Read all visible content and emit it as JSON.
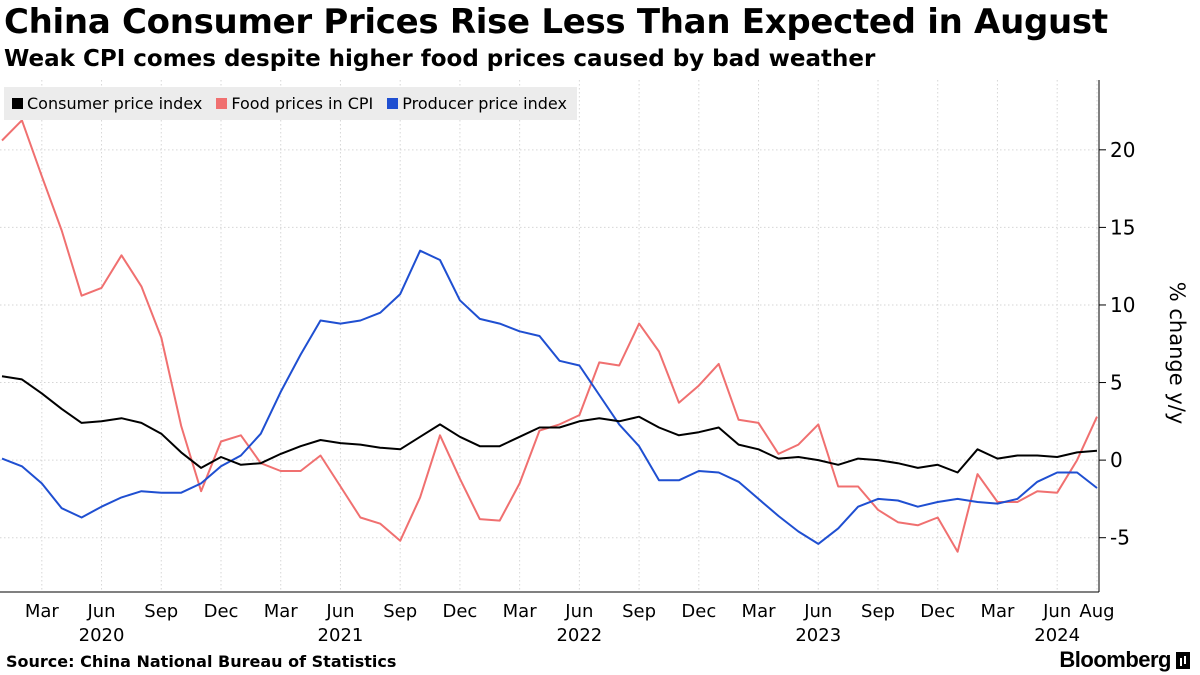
{
  "header": {
    "title": "China Consumer Prices Rise Less Than Expected in August",
    "subtitle": "Weak CPI comes despite higher food prices caused by bad weather"
  },
  "legend": [
    {
      "label": "Consumer price index",
      "color": "#000000"
    },
    {
      "label": "Food prices in CPI",
      "color": "#f07070"
    },
    {
      "label": "Producer price index",
      "color": "#1f4fd1"
    }
  ],
  "footer": {
    "source": "Source: China National Bureau of Statistics",
    "brand": "Bloomberg"
  },
  "chart_data": {
    "type": "line",
    "ylabel": "% change y/y",
    "ylim": [
      -8.5,
      24.5
    ],
    "yticks": [
      -5,
      0,
      5,
      10,
      15,
      20
    ],
    "ytick_labels": [
      "-5",
      "0",
      "5",
      "10",
      "15",
      "20"
    ],
    "y_axis_side": "right",
    "grid": true,
    "legend_position": "top-left",
    "x": [
      "2020-01",
      "2020-02",
      "2020-03",
      "2020-04",
      "2020-05",
      "2020-06",
      "2020-07",
      "2020-08",
      "2020-09",
      "2020-10",
      "2020-11",
      "2020-12",
      "2021-01",
      "2021-02",
      "2021-03",
      "2021-04",
      "2021-05",
      "2021-06",
      "2021-07",
      "2021-08",
      "2021-09",
      "2021-10",
      "2021-11",
      "2021-12",
      "2022-01",
      "2022-02",
      "2022-03",
      "2022-04",
      "2022-05",
      "2022-06",
      "2022-07",
      "2022-08",
      "2022-09",
      "2022-10",
      "2022-11",
      "2022-12",
      "2023-01",
      "2023-02",
      "2023-03",
      "2023-04",
      "2023-05",
      "2023-06",
      "2023-07",
      "2023-08",
      "2023-09",
      "2023-10",
      "2023-11",
      "2023-12",
      "2024-01",
      "2024-02",
      "2024-03",
      "2024-04",
      "2024-05",
      "2024-06",
      "2024-07",
      "2024-08"
    ],
    "x_tick_labels": [
      {
        "x": "2020-03",
        "label": "Mar"
      },
      {
        "x": "2020-06",
        "label": "Jun"
      },
      {
        "x": "2020-09",
        "label": "Sep"
      },
      {
        "x": "2020-12",
        "label": "Dec"
      },
      {
        "x": "2021-03",
        "label": "Mar"
      },
      {
        "x": "2021-06",
        "label": "Jun"
      },
      {
        "x": "2021-09",
        "label": "Sep"
      },
      {
        "x": "2021-12",
        "label": "Dec"
      },
      {
        "x": "2022-03",
        "label": "Mar"
      },
      {
        "x": "2022-06",
        "label": "Jun"
      },
      {
        "x": "2022-09",
        "label": "Sep"
      },
      {
        "x": "2022-12",
        "label": "Dec"
      },
      {
        "x": "2023-03",
        "label": "Mar"
      },
      {
        "x": "2023-06",
        "label": "Jun"
      },
      {
        "x": "2023-09",
        "label": "Sep"
      },
      {
        "x": "2023-12",
        "label": "Dec"
      },
      {
        "x": "2024-03",
        "label": "Mar"
      },
      {
        "x": "2024-06",
        "label": "Jun"
      },
      {
        "x": "2024-08",
        "label": "Aug"
      }
    ],
    "year_labels": [
      {
        "x": "2020-06",
        "label": "2020"
      },
      {
        "x": "2021-06",
        "label": "2021"
      },
      {
        "x": "2022-06",
        "label": "2022"
      },
      {
        "x": "2023-06",
        "label": "2023"
      },
      {
        "x": "2024-06",
        "label": "2024"
      }
    ],
    "series": [
      {
        "name": "Consumer price index",
        "color": "#000000",
        "values": [
          5.4,
          5.2,
          4.3,
          3.3,
          2.4,
          2.5,
          2.7,
          2.4,
          1.7,
          0.5,
          -0.5,
          0.2,
          -0.3,
          -0.2,
          0.4,
          0.9,
          1.3,
          1.1,
          1.0,
          0.8,
          0.7,
          1.5,
          2.3,
          1.5,
          0.9,
          0.9,
          1.5,
          2.1,
          2.1,
          2.5,
          2.7,
          2.5,
          2.8,
          2.1,
          1.6,
          1.8,
          2.1,
          1.0,
          0.7,
          0.1,
          0.2,
          0.0,
          -0.3,
          0.1,
          0.0,
          -0.2,
          -0.5,
          -0.3,
          -0.8,
          0.7,
          0.1,
          0.3,
          0.3,
          0.2,
          0.5,
          0.6
        ]
      },
      {
        "name": "Food prices in CPI",
        "color": "#f07070",
        "values": [
          20.6,
          21.9,
          18.3,
          14.8,
          10.6,
          11.1,
          13.2,
          11.2,
          7.9,
          2.2,
          -2.0,
          1.2,
          1.6,
          -0.2,
          -0.7,
          -0.7,
          0.3,
          -1.7,
          -3.7,
          -4.1,
          -5.2,
          -2.4,
          1.6,
          -1.2,
          -3.8,
          -3.9,
          -1.5,
          1.9,
          2.3,
          2.9,
          6.3,
          6.1,
          8.8,
          7.0,
          3.7,
          4.8,
          6.2,
          2.6,
          2.4,
          0.4,
          1.0,
          2.3,
          -1.7,
          -1.7,
          -3.2,
          -4.0,
          -4.2,
          -3.7,
          -5.9,
          -0.9,
          -2.7,
          -2.7,
          -2.0,
          -2.1,
          0.0,
          2.8
        ]
      },
      {
        "name": "Producer price index",
        "color": "#1f4fd1",
        "values": [
          0.1,
          -0.4,
          -1.5,
          -3.1,
          -3.7,
          -3.0,
          -2.4,
          -2.0,
          -2.1,
          -2.1,
          -1.5,
          -0.4,
          0.3,
          1.7,
          4.4,
          6.8,
          9.0,
          8.8,
          9.0,
          9.5,
          10.7,
          13.5,
          12.9,
          10.3,
          9.1,
          8.8,
          8.3,
          8.0,
          6.4,
          6.1,
          4.2,
          2.3,
          0.9,
          -1.3,
          -1.3,
          -0.7,
          -0.8,
          -1.4,
          -2.5,
          -3.6,
          -4.6,
          -5.4,
          -4.4,
          -3.0,
          -2.5,
          -2.6,
          -3.0,
          -2.7,
          -2.5,
          -2.7,
          -2.8,
          -2.5,
          -1.4,
          -0.8,
          -0.8,
          -1.8
        ]
      }
    ]
  }
}
